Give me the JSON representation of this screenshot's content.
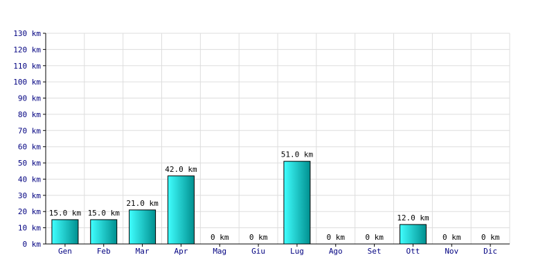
{
  "chart_data": {
    "type": "bar",
    "categories": [
      "Gen",
      "Feb",
      "Mar",
      "Apr",
      "Mag",
      "Giu",
      "Lug",
      "Ago",
      "Set",
      "Ott",
      "Nov",
      "Dic"
    ],
    "values": [
      15.0,
      15.0,
      21.0,
      42.0,
      0,
      0,
      51.0,
      0,
      0,
      12.0,
      0,
      0
    ],
    "data_labels": [
      "15.0 km",
      "15.0 km",
      "21.0 km",
      "42.0 km",
      "0 km",
      "0 km",
      "51.0 km",
      "0 km",
      "0 km",
      "12.0 km",
      "0 km",
      "0 km"
    ],
    "title": "",
    "xlabel": "",
    "ylabel": "",
    "ylim": [
      0,
      130
    ],
    "y_ticks": [
      0,
      10,
      20,
      30,
      40,
      50,
      60,
      70,
      80,
      90,
      100,
      110,
      120,
      130
    ],
    "y_tick_labels": [
      "0 km",
      "10 km",
      "20 km",
      "30 km",
      "40 km",
      "50 km",
      "60 km",
      "70 km",
      "80 km",
      "90 km",
      "100 km",
      "110 km",
      "120 km",
      "130 km"
    ],
    "grid": true,
    "legend": "none",
    "colors": {
      "bar_light": "#40ffff",
      "bar_dark": "#009090",
      "bar_outline": "#000000",
      "grid": "#dddddd",
      "axis": "#000000",
      "tick_text": "#000080",
      "label_text": "#000000"
    }
  }
}
